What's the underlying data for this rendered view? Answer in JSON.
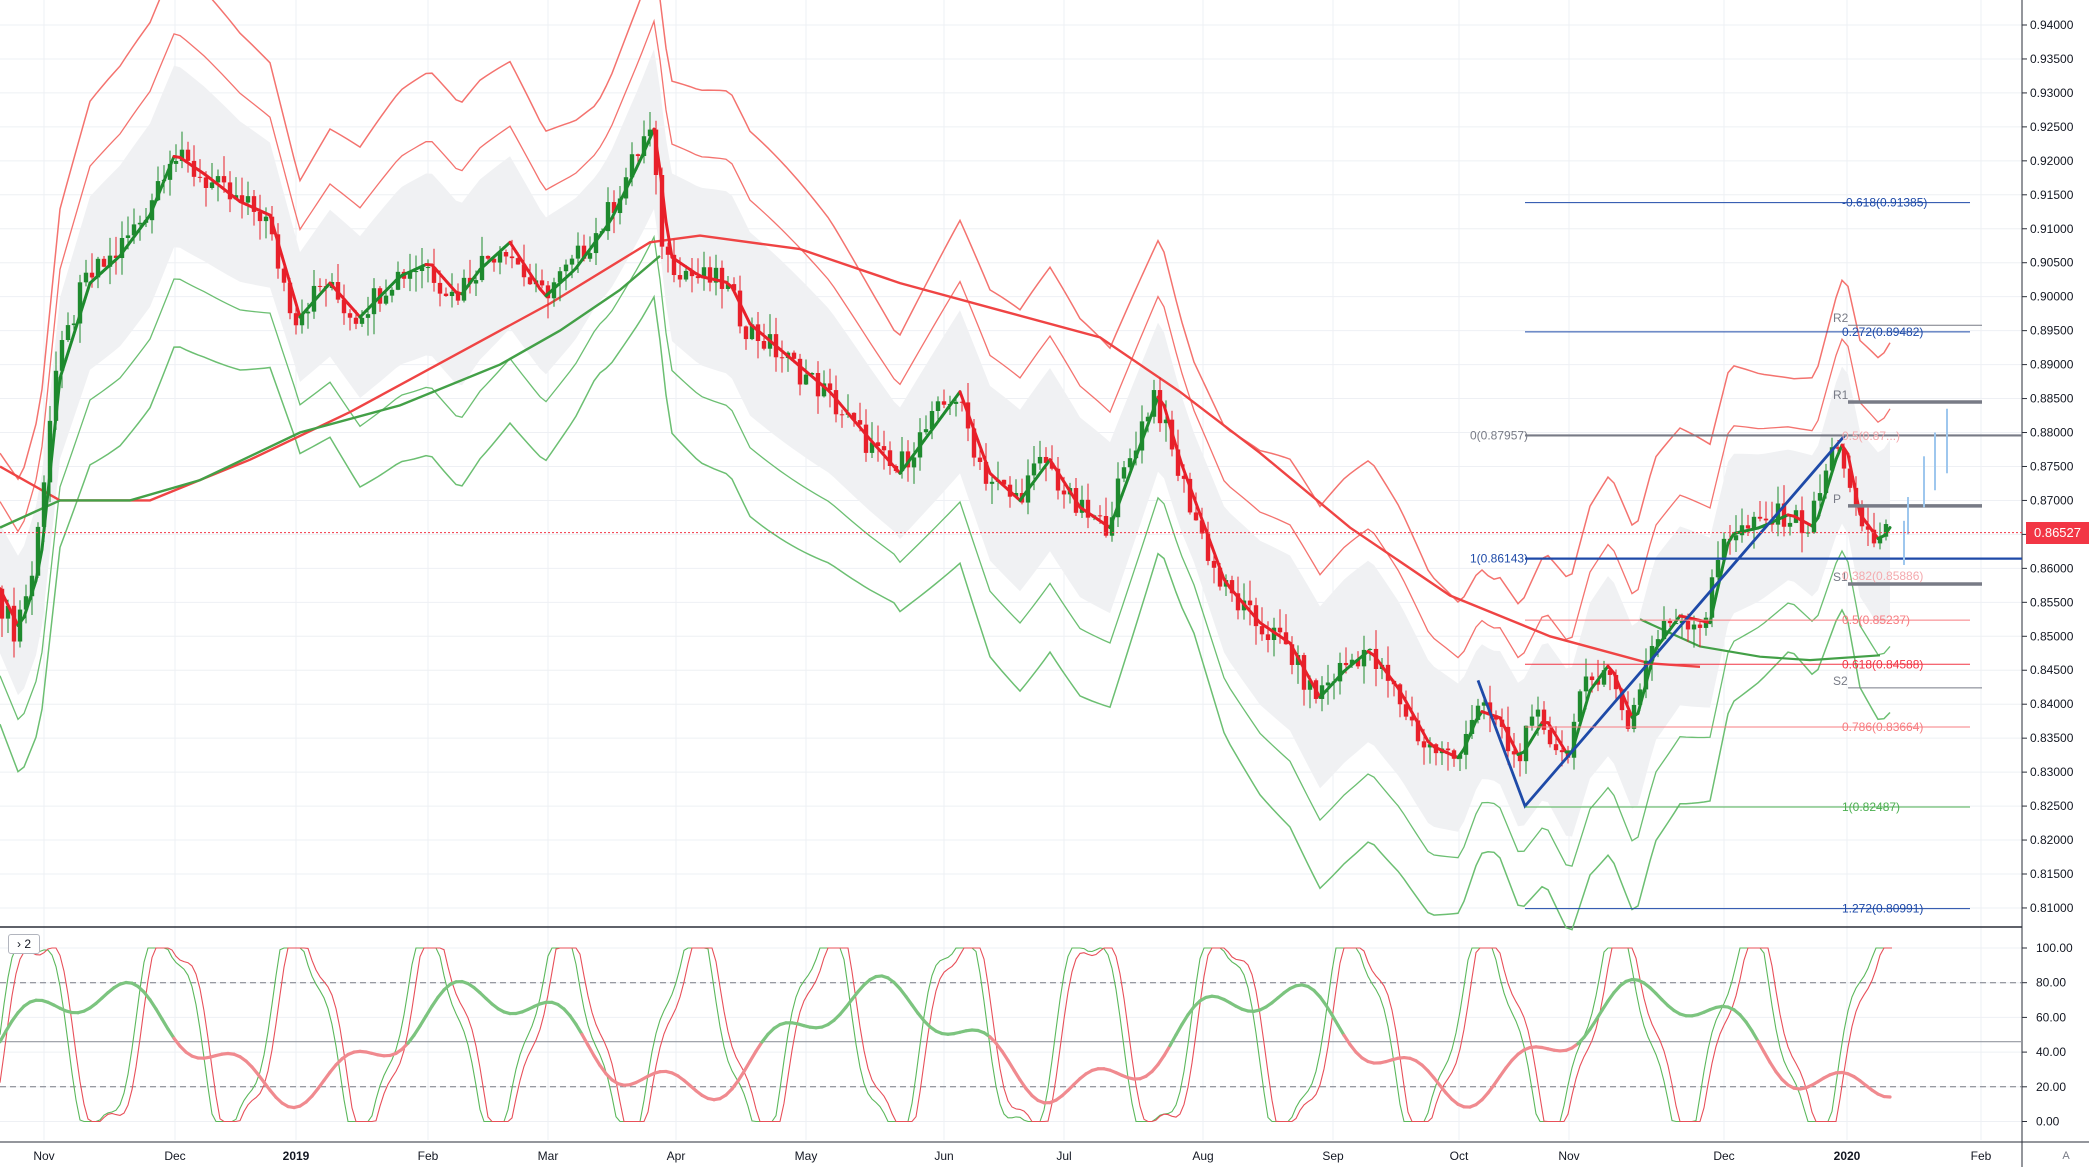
{
  "chart_data": {
    "type": "candlestick",
    "instrument_last_price": "0.86527",
    "price_axis": {
      "ylim": [
        0.805,
        0.94
      ],
      "ticks": [
        "0.94000",
        "0.93500",
        "0.93000",
        "0.92500",
        "0.92000",
        "0.91500",
        "0.91000",
        "0.90500",
        "0.90000",
        "0.89500",
        "0.89000",
        "0.88500",
        "0.88000",
        "0.87500",
        "0.87000",
        "0.86500",
        "0.86000",
        "0.85500",
        "0.85000",
        "0.84500",
        "0.84000",
        "0.83500",
        "0.83000",
        "0.82500",
        "0.82000",
        "0.81500",
        "0.81000"
      ]
    },
    "time_axis": {
      "labels": [
        "Nov",
        "Dec",
        "2019",
        "Feb",
        "Mar",
        "Apr",
        "May",
        "Jun",
        "Jul",
        "Aug",
        "Sep",
        "Oct",
        "Nov",
        "Dec",
        "2020",
        "Feb"
      ],
      "bold": [
        "2019",
        "2020"
      ]
    },
    "fib_levels": [
      {
        "label": "-0.618(0.91385)",
        "value": 0.91385,
        "color": "#1e4aa8"
      },
      {
        "label": "0.272(0.89482)",
        "value": 0.89482,
        "color": "#1e4aa8"
      },
      {
        "label": "0(0.87957)",
        "value": 0.87957,
        "color": "#787b86"
      },
      {
        "label": "1(0.86143)",
        "value": 0.86143,
        "color": "#1e4aa8"
      },
      {
        "label": "0.5(0.85237)",
        "value": 0.85237,
        "color": "#f77c80"
      },
      {
        "label": "0.618(0.84588)",
        "value": 0.84588,
        "color": "#f23645"
      },
      {
        "label": "0.786(0.83664)",
        "value": 0.83664,
        "color": "#f77c80"
      },
      {
        "label": "1(0.82487)",
        "value": 0.82487,
        "color": "#4caf50"
      },
      {
        "label": "1.272(0.80991)",
        "value": 0.80991,
        "color": "#1e4aa8"
      }
    ],
    "pivot_labels": [
      {
        "label": "R2",
        "value": 0.8958
      },
      {
        "label": "R1",
        "value": 0.8845
      },
      {
        "label": "P",
        "value": 0.8692
      },
      {
        "label": "S1",
        "value": 0.8577
      },
      {
        "label": "S2",
        "value": 0.8424
      }
    ],
    "faded_labels": [
      {
        "label": "0.5(0.87...)",
        "value": 0.8795
      },
      {
        "label": "0.382(0.85886)",
        "value": 0.8589
      }
    ],
    "oscillator": {
      "pane_label": "2",
      "ticks": [
        "100.00",
        "80.00",
        "60.00",
        "40.00",
        "20.00",
        "0.00"
      ],
      "ylim": [
        -5,
        108
      ],
      "levels": [
        80,
        20
      ],
      "midline": 46
    },
    "colors": {
      "up_candle": "#1e8a2e",
      "down_candle": "#e8202a",
      "upper_band": "#f4736f",
      "lower_band": "#6cbf72",
      "ma200": "#ef4444",
      "ma_green": "#43a047",
      "pattern": "#1e4aa8",
      "last_price": "#f23645"
    }
  }
}
